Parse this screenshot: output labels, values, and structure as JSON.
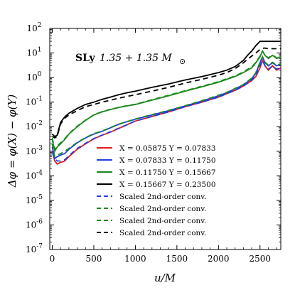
{
  "chart_data": {
    "type": "line",
    "title": "",
    "annotation": {
      "label": "SLy",
      "text": "1.35 + 1.35 M",
      "subscript": "⊙"
    },
    "xlabel": "u/M",
    "ylabel": "Δφ = φ(X) − φ(Y)",
    "xlim": [
      -30,
      2750
    ],
    "ylim": [
      1e-07,
      100
    ],
    "yscale": "log",
    "grid": false,
    "legend_position": "lower-right",
    "x_ticks": [
      0,
      500,
      1000,
      1500,
      2000,
      2500
    ],
    "x_tick_labels": [
      "0",
      "500",
      "1000",
      "1500",
      "2000",
      "2500"
    ],
    "y_ticks": [
      1e-07,
      1e-06,
      1e-05,
      0.0001,
      0.001,
      0.01,
      0.1,
      1,
      10,
      100
    ],
    "y_tick_labels": [
      "10^-7",
      "10^-6",
      "10^-5",
      "10^-4",
      "10^-3",
      "10^-2",
      "10^-1",
      "10^0",
      "10^1",
      "10^2"
    ],
    "series": [
      {
        "name": "X = 0.05875 Y = 0.07833",
        "color": "#e31a1c",
        "dash": "solid",
        "points": [
          [
            0,
            0.001
          ],
          [
            30,
            0.0004
          ],
          [
            60,
            0.0003
          ],
          [
            100,
            0.00035
          ],
          [
            150,
            0.0004
          ],
          [
            200,
            0.0006
          ],
          [
            300,
            0.0012
          ],
          [
            400,
            0.002
          ],
          [
            500,
            0.0032
          ],
          [
            600,
            0.0045
          ],
          [
            700,
            0.006
          ],
          [
            800,
            0.0085
          ],
          [
            900,
            0.012
          ],
          [
            1000,
            0.017
          ],
          [
            1200,
            0.026
          ],
          [
            1400,
            0.04
          ],
          [
            1600,
            0.065
          ],
          [
            1800,
            0.1
          ],
          [
            2000,
            0.16
          ],
          [
            2100,
            0.22
          ],
          [
            2200,
            0.3
          ],
          [
            2300,
            0.45
          ],
          [
            2400,
            0.75
          ],
          [
            2450,
            1.1
          ],
          [
            2500,
            2.5
          ],
          [
            2530,
            5
          ],
          [
            2560,
            3
          ],
          [
            2600,
            2
          ],
          [
            2650,
            3
          ],
          [
            2700,
            2
          ],
          [
            2750,
            2.5
          ]
        ]
      },
      {
        "name": "X = 0.07833 Y = 0.11750",
        "color": "#1f3fe0",
        "dash": "solid",
        "points": [
          [
            0,
            0.0015
          ],
          [
            30,
            0.0005
          ],
          [
            60,
            0.0006
          ],
          [
            100,
            0.0007
          ],
          [
            150,
            0.0008
          ],
          [
            200,
            0.0012
          ],
          [
            300,
            0.0022
          ],
          [
            400,
            0.0035
          ],
          [
            500,
            0.005
          ],
          [
            600,
            0.0065
          ],
          [
            700,
            0.009
          ],
          [
            800,
            0.0125
          ],
          [
            900,
            0.016
          ],
          [
            1000,
            0.02
          ],
          [
            1200,
            0.03
          ],
          [
            1400,
            0.045
          ],
          [
            1600,
            0.07
          ],
          [
            1800,
            0.11
          ],
          [
            2000,
            0.18
          ],
          [
            2100,
            0.24
          ],
          [
            2200,
            0.35
          ],
          [
            2300,
            0.5
          ],
          [
            2400,
            0.9
          ],
          [
            2450,
            1.5
          ],
          [
            2500,
            4
          ],
          [
            2530,
            7
          ],
          [
            2560,
            4
          ],
          [
            2600,
            3
          ],
          [
            2650,
            4
          ],
          [
            2700,
            3
          ],
          [
            2750,
            3.5
          ]
        ]
      },
      {
        "name": "X = 0.11750 Y = 0.15667",
        "color": "#1b8a1b",
        "dash": "solid",
        "points": [
          [
            0,
            0.003
          ],
          [
            30,
            0.001
          ],
          [
            60,
            0.0015
          ],
          [
            100,
            0.002
          ],
          [
            150,
            0.003
          ],
          [
            200,
            0.005
          ],
          [
            300,
            0.01
          ],
          [
            400,
            0.018
          ],
          [
            500,
            0.03
          ],
          [
            600,
            0.04
          ],
          [
            700,
            0.05
          ],
          [
            800,
            0.06
          ],
          [
            900,
            0.07
          ],
          [
            1000,
            0.08
          ],
          [
            1200,
            0.12
          ],
          [
            1400,
            0.18
          ],
          [
            1600,
            0.28
          ],
          [
            1800,
            0.42
          ],
          [
            2000,
            0.65
          ],
          [
            2100,
            0.85
          ],
          [
            2200,
            1.1
          ],
          [
            2300,
            1.6
          ],
          [
            2400,
            2.5
          ],
          [
            2450,
            4
          ],
          [
            2500,
            7
          ],
          [
            2530,
            12
          ],
          [
            2560,
            8
          ],
          [
            2600,
            6
          ],
          [
            2650,
            8
          ],
          [
            2700,
            6
          ],
          [
            2750,
            7
          ]
        ]
      },
      {
        "name": "X = 0.15667 Y = 0.23500",
        "color": "#000000",
        "dash": "solid",
        "points": [
          [
            0,
            0.005
          ],
          [
            30,
            0.004
          ],
          [
            60,
            0.0045
          ],
          [
            100,
            0.015
          ],
          [
            150,
            0.025
          ],
          [
            200,
            0.035
          ],
          [
            300,
            0.055
          ],
          [
            400,
            0.08
          ],
          [
            500,
            0.1
          ],
          [
            600,
            0.13
          ],
          [
            700,
            0.16
          ],
          [
            800,
            0.2
          ],
          [
            900,
            0.24
          ],
          [
            1000,
            0.28
          ],
          [
            1200,
            0.4
          ],
          [
            1400,
            0.55
          ],
          [
            1600,
            0.8
          ],
          [
            1800,
            1.1
          ],
          [
            2000,
            1.6
          ],
          [
            2100,
            2
          ],
          [
            2200,
            2.8
          ],
          [
            2300,
            5
          ],
          [
            2350,
            8
          ],
          [
            2400,
            12
          ],
          [
            2450,
            20
          ],
          [
            2500,
            30
          ],
          [
            2600,
            30
          ],
          [
            2750,
            30
          ]
        ]
      },
      {
        "name": "Scaled 2nd-order conv.",
        "color": "#1f3fe0",
        "dash": "dashed",
        "points": [
          [
            0,
            0.0009
          ],
          [
            30,
            0.0005
          ],
          [
            60,
            0.0004
          ],
          [
            100,
            0.0004
          ],
          [
            150,
            0.00045
          ],
          [
            200,
            0.00065
          ],
          [
            300,
            0.0013
          ],
          [
            400,
            0.0021
          ],
          [
            500,
            0.0033
          ],
          [
            600,
            0.0046
          ],
          [
            700,
            0.0062
          ],
          [
            800,
            0.0087
          ],
          [
            900,
            0.012
          ],
          [
            1000,
            0.017
          ],
          [
            1200,
            0.026
          ],
          [
            1400,
            0.04
          ],
          [
            1600,
            0.065
          ],
          [
            1800,
            0.1
          ],
          [
            2000,
            0.16
          ],
          [
            2100,
            0.22
          ],
          [
            2200,
            0.3
          ],
          [
            2300,
            0.45
          ],
          [
            2400,
            0.8
          ],
          [
            2450,
            1.2
          ],
          [
            2500,
            3
          ],
          [
            2530,
            5
          ],
          [
            2560,
            3
          ],
          [
            2600,
            2.2
          ],
          [
            2650,
            3
          ],
          [
            2700,
            2.2
          ],
          [
            2750,
            2.6
          ]
        ]
      },
      {
        "name": "Scaled 2nd-order conv.",
        "color": "#1b8a1b",
        "dash": "dashed",
        "points": [
          [
            0,
            0.002
          ],
          [
            30,
            0.0006
          ],
          [
            60,
            0.0007
          ],
          [
            100,
            0.0008
          ],
          [
            150,
            0.001
          ],
          [
            200,
            0.0013
          ],
          [
            300,
            0.0023
          ],
          [
            400,
            0.0036
          ],
          [
            500,
            0.0052
          ],
          [
            600,
            0.0067
          ],
          [
            700,
            0.0092
          ],
          [
            800,
            0.0127
          ],
          [
            900,
            0.0162
          ],
          [
            1000,
            0.0205
          ],
          [
            1200,
            0.031
          ],
          [
            1400,
            0.046
          ],
          [
            1600,
            0.072
          ],
          [
            1800,
            0.115
          ],
          [
            2000,
            0.19
          ],
          [
            2100,
            0.25
          ],
          [
            2200,
            0.36
          ],
          [
            2300,
            0.52
          ],
          [
            2400,
            0.95
          ],
          [
            2450,
            1.6
          ],
          [
            2500,
            4.2
          ],
          [
            2530,
            7
          ],
          [
            2560,
            4.2
          ],
          [
            2600,
            3.2
          ],
          [
            2650,
            4.2
          ],
          [
            2700,
            3.2
          ],
          [
            2750,
            3.6
          ]
        ]
      },
      {
        "name": "Scaled 2nd-order conv.",
        "color": "#1b8a1b",
        "dash": "dashed",
        "points": [
          [
            0,
            0.0035
          ],
          [
            30,
            0.0012
          ],
          [
            60,
            0.0017
          ],
          [
            100,
            0.0022
          ],
          [
            150,
            0.0032
          ],
          [
            200,
            0.0052
          ],
          [
            300,
            0.0105
          ],
          [
            400,
            0.0185
          ],
          [
            500,
            0.0305
          ],
          [
            600,
            0.041
          ],
          [
            700,
            0.051
          ],
          [
            800,
            0.061
          ],
          [
            900,
            0.072
          ],
          [
            1000,
            0.082
          ],
          [
            1200,
            0.125
          ],
          [
            1400,
            0.19
          ],
          [
            1600,
            0.29
          ],
          [
            1800,
            0.44
          ],
          [
            2000,
            0.68
          ],
          [
            2100,
            0.9
          ],
          [
            2200,
            1.15
          ],
          [
            2300,
            1.7
          ],
          [
            2400,
            2.7
          ],
          [
            2450,
            4.2
          ],
          [
            2500,
            7.5
          ],
          [
            2530,
            12
          ],
          [
            2560,
            8
          ],
          [
            2600,
            6.3
          ],
          [
            2650,
            8.3
          ],
          [
            2700,
            6.3
          ],
          [
            2750,
            7.3
          ]
        ]
      },
      {
        "name": "Scaled 2nd-order conv.",
        "color": "#000000",
        "dash": "dashed",
        "points": [
          [
            0,
            0.004
          ],
          [
            30,
            0.0035
          ],
          [
            60,
            0.004
          ],
          [
            100,
            0.013
          ],
          [
            150,
            0.022
          ],
          [
            200,
            0.03
          ],
          [
            300,
            0.045
          ],
          [
            400,
            0.065
          ],
          [
            500,
            0.08
          ],
          [
            600,
            0.1
          ],
          [
            700,
            0.12
          ],
          [
            800,
            0.145
          ],
          [
            900,
            0.17
          ],
          [
            1000,
            0.2
          ],
          [
            1200,
            0.28
          ],
          [
            1400,
            0.4
          ],
          [
            1600,
            0.6
          ],
          [
            1800,
            0.85
          ],
          [
            2000,
            1.25
          ],
          [
            2100,
            1.6
          ],
          [
            2200,
            2.3
          ],
          [
            2300,
            4
          ],
          [
            2350,
            5.5
          ],
          [
            2400,
            7.5
          ],
          [
            2450,
            10
          ],
          [
            2500,
            14
          ],
          [
            2550,
            16
          ],
          [
            2600,
            15
          ],
          [
            2750,
            15
          ]
        ]
      }
    ],
    "legend": [
      {
        "label": "X = 0.05875 Y = 0.07833",
        "color": "#e31a1c",
        "dash": "solid"
      },
      {
        "label": "X = 0.07833 Y = 0.11750",
        "color": "#1f3fe0",
        "dash": "solid"
      },
      {
        "label": "X = 0.11750 Y = 0.15667",
        "color": "#1b8a1b",
        "dash": "solid"
      },
      {
        "label": "X = 0.15667 Y = 0.23500",
        "color": "#000000",
        "dash": "solid"
      },
      {
        "label": "Scaled 2nd-order conv.",
        "color": "#1f3fe0",
        "dash": "dashed"
      },
      {
        "label": "Scaled 2nd-order conv.",
        "color": "#1b8a1b",
        "dash": "dashed"
      },
      {
        "label": "Scaled 2nd-order conv.",
        "color": "#1b8a1b",
        "dash": "dashed"
      },
      {
        "label": "Scaled 2nd-order conv.",
        "color": "#000000",
        "dash": "dashed"
      }
    ]
  }
}
